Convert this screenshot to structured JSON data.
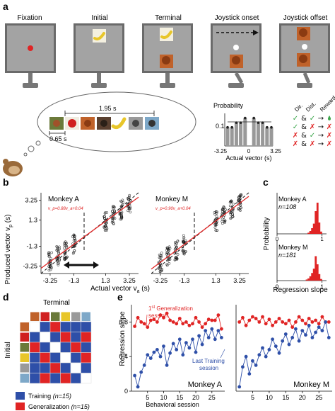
{
  "panel_a": {
    "label": "a",
    "screen_titles": [
      "Fixation",
      "Initial",
      "Terminal",
      "Joystick onset",
      "Joystick offset"
    ],
    "timeline": {
      "interval_long": "1.95 s",
      "interval_short": "0.65 s"
    },
    "hist": {
      "ylabel": "Probability",
      "ytick": "0.1",
      "xticks": [
        "-3.25",
        "0",
        "3.25"
      ],
      "xlabel": "Actual vector (s)"
    },
    "reward_table": {
      "headers": [
        "Dir.",
        "Dist.",
        "Reward"
      ],
      "rows": [
        [
          "✓",
          "&",
          "✓",
          "→",
          "drop"
        ],
        [
          "✓",
          "&",
          "✗",
          "→",
          "✗"
        ],
        [
          "✗",
          "&",
          "✓",
          "→",
          "✗"
        ],
        [
          "✗",
          "&",
          "✗",
          "→",
          "✗"
        ]
      ]
    }
  },
  "panel_b": {
    "label": "b",
    "ylabel": "Produced vector v",
    "ylabel_sub": "p",
    "ylabel_unit": "(s)",
    "xlabel": "Actual vector v",
    "xlabel_sub": "a",
    "xlabel_unit": "(s)",
    "yticks": [
      "3.25",
      "1.3",
      "-1.3",
      "-3.25"
    ],
    "xticks": [
      "-3.25",
      "-1.3",
      "1.3",
      "3.25"
    ],
    "monkeys": [
      {
        "title": "Monkey A",
        "equation": "v_p=0.88v_a+0.04",
        "slope": 0.88,
        "intercept": 0.04
      },
      {
        "title": "Monkey M",
        "equation": "v_p=0.90v_a+0.04",
        "slope": 0.9,
        "intercept": 0.04
      }
    ]
  },
  "panel_c": {
    "label": "c",
    "ylabel": "Probability",
    "xlabel": "Regression slope",
    "xticks": [
      "0",
      "1"
    ],
    "monkeys": [
      {
        "title": "Monkey A",
        "n": "n=108"
      },
      {
        "title": "Monkey M",
        "n": "n=181"
      }
    ]
  },
  "panel_d": {
    "label": "d",
    "top_label": "Terminal",
    "side_label": "Initial",
    "legend": [
      {
        "label": "Training",
        "n": "(n=15)",
        "color": "#2e4fa8"
      },
      {
        "label": "Generalization",
        "n": "(n=15)",
        "color": "#e02424"
      }
    ],
    "matrix": [
      [
        "X",
        "B",
        "R",
        "B",
        "B",
        "B"
      ],
      [
        "B",
        "X",
        "B",
        "R",
        "B",
        "R"
      ],
      [
        "R",
        "B",
        "X",
        "B",
        "R",
        "B"
      ],
      [
        "B",
        "R",
        "B",
        "X",
        "B",
        "R"
      ],
      [
        "B",
        "B",
        "R",
        "B",
        "X",
        "B"
      ],
      [
        "B",
        "R",
        "B",
        "R",
        "B",
        "X"
      ]
    ]
  },
  "panel_e": {
    "label": "e",
    "ylabel": "Regression slope",
    "xlabel": "Behavioral session",
    "yticks": [
      "0.8",
      "0.4",
      "0"
    ],
    "annot_gen_line1": "1",
    "annot_gen_sup": "st",
    "annot_gen_line1b": " Generalization",
    "annot_gen_line2": "session",
    "annot_train_line1": "Last Training",
    "annot_train_line2": "session",
    "monkeys": [
      {
        "title": "Monkey A",
        "xticks": [
          "5",
          "10",
          "15",
          "20",
          "25"
        ]
      },
      {
        "title": "Monkey M",
        "xticks": [
          "5",
          "10",
          "15",
          "20",
          "25"
        ]
      }
    ]
  },
  "colors": {
    "red": "#e02424",
    "blue": "#2e4fa8",
    "gray_screen": "#9a9a9a",
    "fix_dot": "#e02424"
  },
  "chart_data": [
    {
      "type": "line",
      "title": "",
      "xlabel": "Behavioral session",
      "ylabel": "Regression slope",
      "ylim": [
        0,
        1
      ],
      "panel": "Monkey A",
      "series": [
        {
          "name": "Generalization",
          "x": [
            1,
            2,
            3,
            4,
            5,
            6,
            7,
            8,
            9,
            10,
            11,
            12,
            13,
            14,
            15,
            16,
            17,
            18,
            19,
            20,
            21,
            22,
            23,
            24,
            25,
            26,
            27,
            28
          ],
          "values": [
            0.75,
            0.85,
            0.8,
            0.78,
            0.74,
            0.82,
            0.83,
            0.8,
            0.88,
            0.85,
            0.9,
            0.82,
            0.8,
            0.78,
            0.84,
            0.78,
            0.8,
            0.76,
            0.78,
            0.85,
            0.8,
            0.74,
            0.78,
            0.83,
            0.82,
            0.82,
            0.88,
            0.72
          ]
        },
        {
          "name": "Training",
          "x": [
            1,
            2,
            3,
            4,
            5,
            6,
            7,
            8,
            9,
            10,
            11,
            12,
            13,
            14,
            15,
            16,
            17,
            18,
            19,
            20,
            21,
            22,
            23,
            24,
            25,
            26,
            27,
            28
          ],
          "values": [
            0.18,
            0.05,
            0.22,
            0.3,
            0.42,
            0.38,
            0.45,
            0.48,
            0.4,
            0.52,
            0.3,
            0.44,
            0.55,
            0.48,
            0.6,
            0.42,
            0.56,
            0.5,
            0.6,
            0.45,
            0.64,
            0.54,
            0.7,
            0.62,
            0.72,
            0.6,
            0.7,
            0.62
          ]
        }
      ]
    },
    {
      "type": "line",
      "title": "",
      "xlabel": "Behavioral session",
      "ylabel": "Regression slope",
      "ylim": [
        0,
        1
      ],
      "panel": "Monkey M",
      "series": [
        {
          "name": "Generalization",
          "x": [
            1,
            2,
            3,
            4,
            5,
            6,
            7,
            8,
            9,
            10,
            11,
            12,
            13,
            14,
            15,
            16,
            17,
            18,
            19,
            20,
            21,
            22,
            23,
            24,
            25,
            26,
            27,
            28
          ],
          "values": [
            0.8,
            0.85,
            0.76,
            0.82,
            0.86,
            0.84,
            0.8,
            0.86,
            0.78,
            0.83,
            0.76,
            0.8,
            0.84,
            0.8,
            0.78,
            0.82,
            0.74,
            0.8,
            0.86,
            0.82,
            0.78,
            0.84,
            0.8,
            0.82,
            0.78,
            0.86,
            0.8,
            0.8
          ]
        },
        {
          "name": "Training",
          "x": [
            1,
            2,
            3,
            4,
            5,
            6,
            7,
            8,
            9,
            10,
            11,
            12,
            13,
            14,
            15,
            16,
            17,
            18,
            19,
            20,
            21,
            22,
            23,
            24,
            25,
            26,
            27,
            28
          ],
          "values": [
            0.05,
            0.28,
            0.4,
            0.2,
            0.35,
            0.3,
            0.42,
            0.5,
            0.4,
            0.48,
            0.6,
            0.52,
            0.44,
            0.58,
            0.66,
            0.54,
            0.62,
            0.72,
            0.58,
            0.7,
            0.65,
            0.76,
            0.62,
            0.68,
            0.74,
            0.7,
            0.8,
            0.62
          ]
        }
      ]
    },
    {
      "type": "bar",
      "title": "",
      "panel": "c - Monkey A",
      "xlabel": "Regression slope",
      "ylabel": "Probability",
      "x": [
        0.7,
        0.74,
        0.78,
        0.82,
        0.86,
        0.9,
        0.94,
        0.98
      ],
      "values": [
        0.02,
        0.05,
        0.1,
        0.18,
        0.4,
        0.55,
        0.2,
        0.04
      ]
    },
    {
      "type": "bar",
      "title": "",
      "panel": "c - Monkey M",
      "xlabel": "Regression slope",
      "ylabel": "Probability",
      "x": [
        0.66,
        0.7,
        0.74,
        0.78,
        0.82,
        0.86,
        0.9,
        0.94,
        0.98
      ],
      "values": [
        0.02,
        0.04,
        0.08,
        0.14,
        0.22,
        0.45,
        0.3,
        0.12,
        0.03
      ]
    }
  ]
}
